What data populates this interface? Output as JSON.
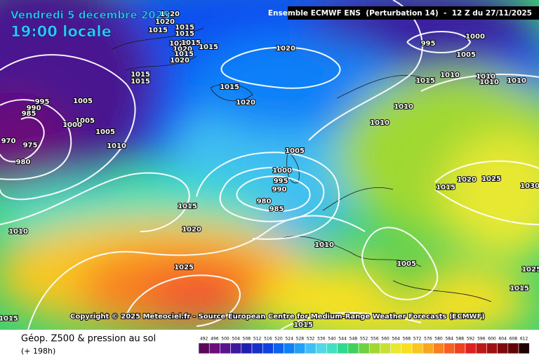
{
  "header": {
    "date": "Vendredi 5 décembre 2025",
    "time": "19:00 locale",
    "run": "Ensemble ECMWF ENS  (Perturbation 14)  -  12 Z du 27/11/2025"
  },
  "copyright": "Copyright © 2025 Meteociel.fr - Source European Centre for Medium-Range Weather Forecasts (ECMWF)",
  "footer": {
    "title": "Géop. Z500 & pression au sol",
    "lead": "(+ 198h)"
  },
  "isobar_labels": [
    1020,
    1020,
    1015,
    1015,
    1015,
    1020,
    1015,
    1015,
    1020,
    1015,
    1020,
    1020,
    995,
    1000,
    1005,
    1015,
    1015,
    1015,
    1010,
    1010,
    1010,
    1010,
    1015,
    1020,
    1005,
    995,
    990,
    985,
    1005,
    1000,
    1005,
    1010,
    1010,
    970,
    975,
    980,
    1010,
    1005,
    1000,
    995,
    990,
    980,
    985,
    1015,
    1020,
    1015,
    1020,
    1025,
    1010,
    1010,
    1005,
    1025,
    1015,
    1015,
    1015,
    1030,
    1025
  ],
  "scale": {
    "values": [
      492,
      496,
      500,
      504,
      508,
      512,
      516,
      520,
      524,
      528,
      532,
      536,
      540,
      544,
      548,
      552,
      556,
      560,
      564,
      568,
      572,
      576,
      580,
      584,
      588,
      592,
      596,
      600,
      604,
      608,
      612
    ],
    "colors": [
      "#5a0a5a",
      "#6a0f7a",
      "#5a1490",
      "#3a1aa0",
      "#2020b0",
      "#1830c8",
      "#1040e0",
      "#1060f0",
      "#1080f8",
      "#20a0f8",
      "#40c0f0",
      "#50d8e8",
      "#40e0c0",
      "#30d890",
      "#40d060",
      "#70d040",
      "#a0d830",
      "#c8e030",
      "#e8e830",
      "#f8e020",
      "#f8c820",
      "#f8a820",
      "#f88020",
      "#f86020",
      "#f04020",
      "#e02020",
      "#c01818",
      "#a01010",
      "#800808",
      "#600404",
      "#200000"
    ]
  }
}
